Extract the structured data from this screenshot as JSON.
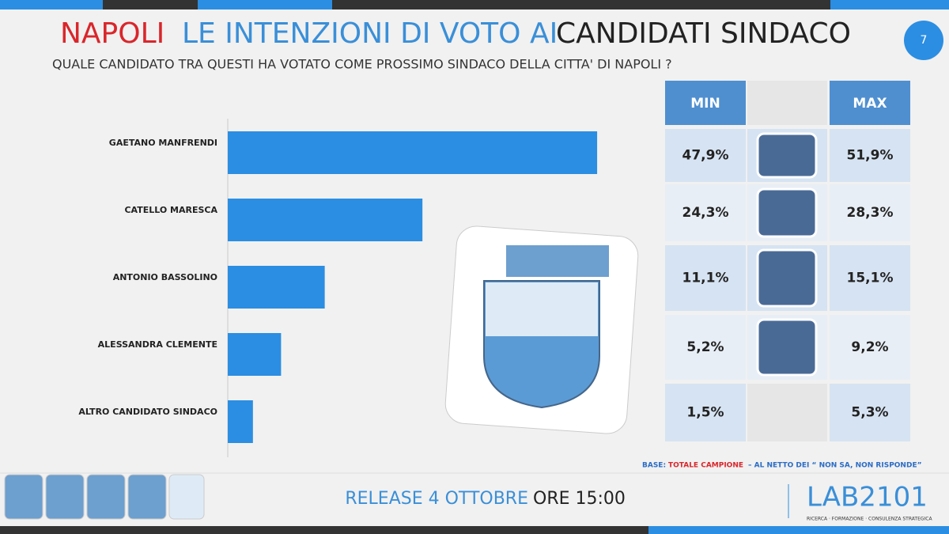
{
  "page_number": "7",
  "chart_data": {
    "type": "bar",
    "title_city": "NAPOLI",
    "title": "LE INTENZIONI DI VOTO AI",
    "title_end": "CANDIDATI SINDACO",
    "subtitle": "QUALE CANDIDATO TRA QUESTI HA VOTATO COME PROSSIMO SINDACO DELLA CITTA' DI NAPOLI ?",
    "categories": [
      "GAETANO MANFRENDI",
      "CATELLO MARESCA",
      "ANTONIO BASSOLINO",
      "ALESSANDRA CLEMENTE",
      "ALTRO CANDIDATO SINDACO"
    ],
    "values": [
      49.9,
      26.3,
      13.1,
      7.2,
      3.4
    ],
    "color": "#2b8ee2"
  },
  "range_table": {
    "headers": [
      "MIN",
      "MAX"
    ],
    "min": {
      "values": [
        47.9,
        24.3,
        11.1,
        5.2,
        1.5
      ],
      "value_labels": [
        "47,9%",
        "24,3%",
        "11,1%",
        "5,2%",
        "1,5%"
      ]
    },
    "max": {
      "values": [
        51.9,
        28.3,
        15.1,
        9.2,
        5.3
      ],
      "value_labels": [
        "51,9%",
        "28,3%",
        "15,1%",
        "9,2%",
        "5,3%"
      ]
    }
  },
  "note": {
    "base": "BASE:",
    "sample": "TOTALE CAMPIONE",
    "rest": "– AL NETTO DEI “ NON SA, NON RISPONDE”"
  },
  "release": {
    "text": "RELEASE 4 OTTOBRE",
    "time": "ORE 15:00"
  },
  "logo": {
    "name": "LAB2101",
    "tagline": "RICERCA · FORMAZIONE · CONSULENZA STRATEGICA"
  }
}
